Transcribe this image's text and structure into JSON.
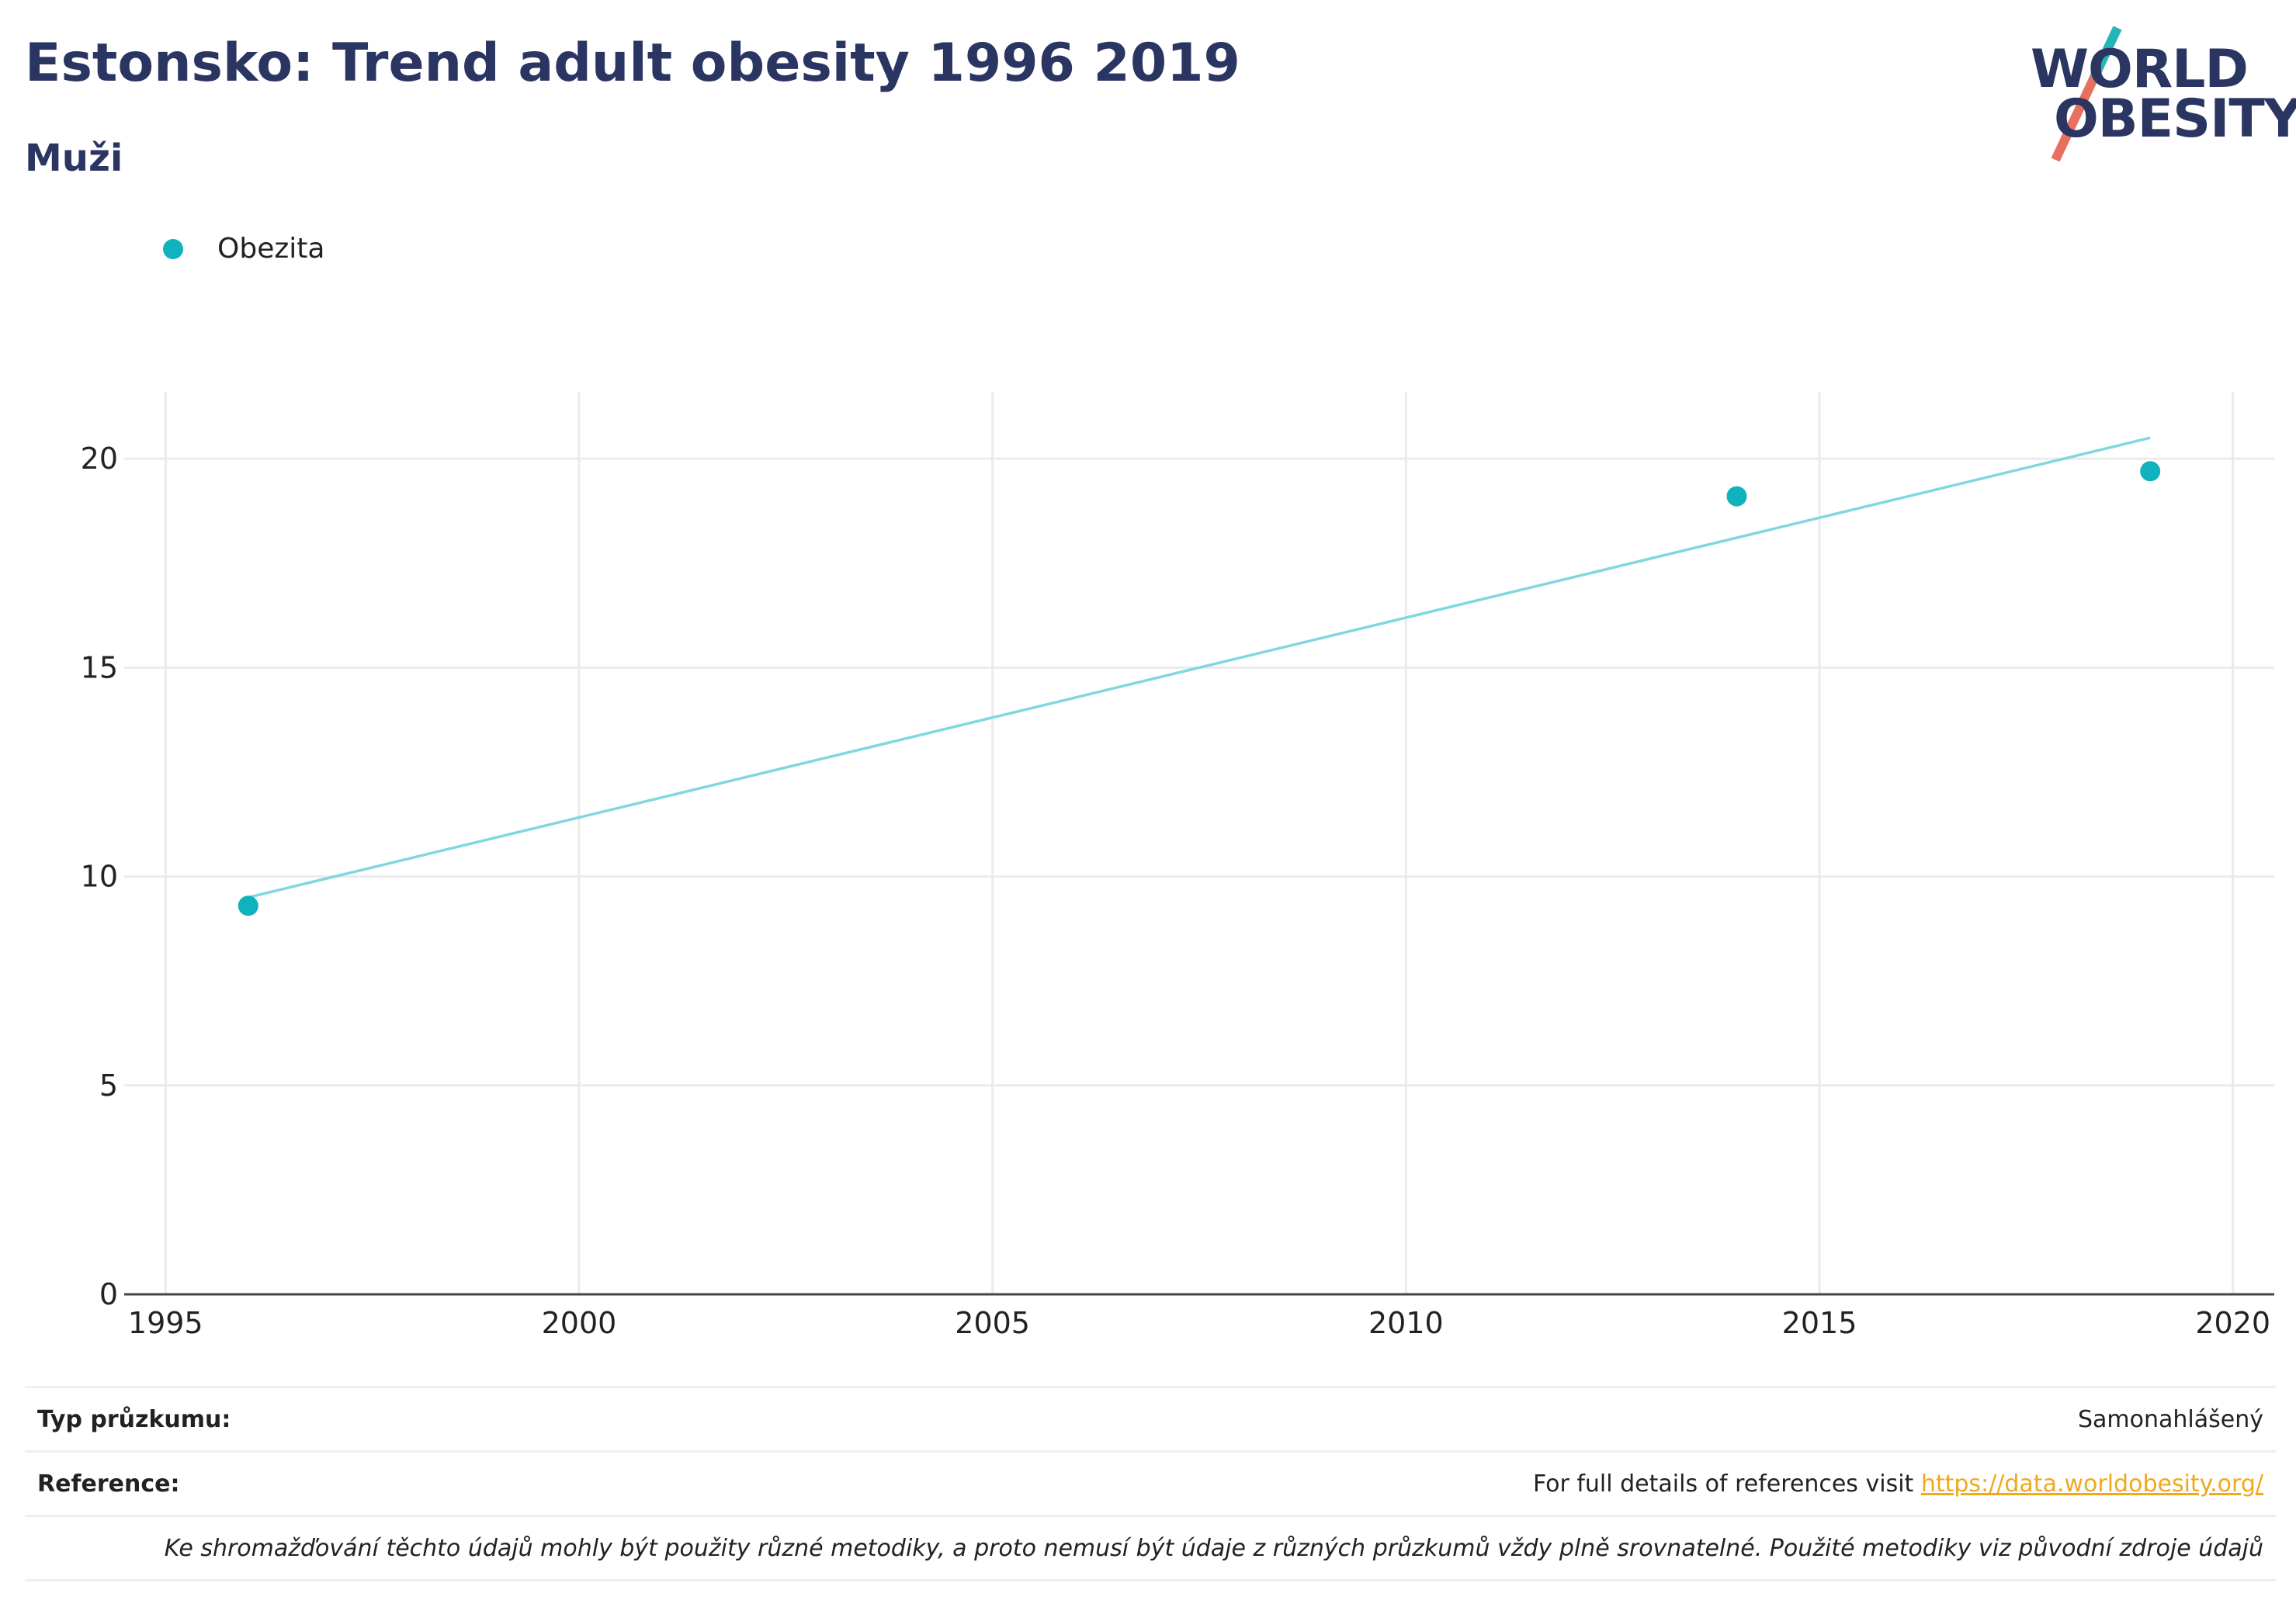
{
  "header": {
    "title": "Estonsko: Trend adult obesity 1996 2019",
    "subtitle": "Muži"
  },
  "logo": {
    "line1": "WORLD",
    "line2": "OBESITY"
  },
  "chart_data": {
    "type": "scatter",
    "title": "Estonsko: Trend adult obesity 1996 2019",
    "subtitle": "Muži",
    "xlabel": "",
    "ylabel": "",
    "xlim": [
      1994.5,
      2020.5
    ],
    "ylim": [
      0,
      21.6
    ],
    "x_ticks": [
      1995,
      2000,
      2005,
      2010,
      2015,
      2020
    ],
    "y_ticks": [
      0,
      5,
      10,
      15,
      20
    ],
    "grid": true,
    "legend_position": "top-left",
    "series": [
      {
        "name": "Obezita",
        "color": "#10b2be",
        "points": [
          {
            "x": 1996,
            "y": 9.3
          },
          {
            "x": 2014,
            "y": 19.1
          },
          {
            "x": 2019,
            "y": 19.7
          }
        ]
      }
    ],
    "trendline": {
      "color": "#7fd8de",
      "start": {
        "x": 1996,
        "y": 9.5
      },
      "end": {
        "x": 2019,
        "y": 20.5
      }
    }
  },
  "footer": {
    "survey_label": "Typ průzkumu:",
    "survey_value": "Samonahlášený",
    "reference_label": "Reference:",
    "reference_text": "For full details of references visit ",
    "reference_link": "https://data.worldobesity.org/",
    "note": "Ke shromažďování těchto údajů mohly být použity různé metodiky, a proto nemusí být údaje z různých průzkumů vždy plně srovnatelné. Použité metodiky viz původní zdroje údajů"
  }
}
